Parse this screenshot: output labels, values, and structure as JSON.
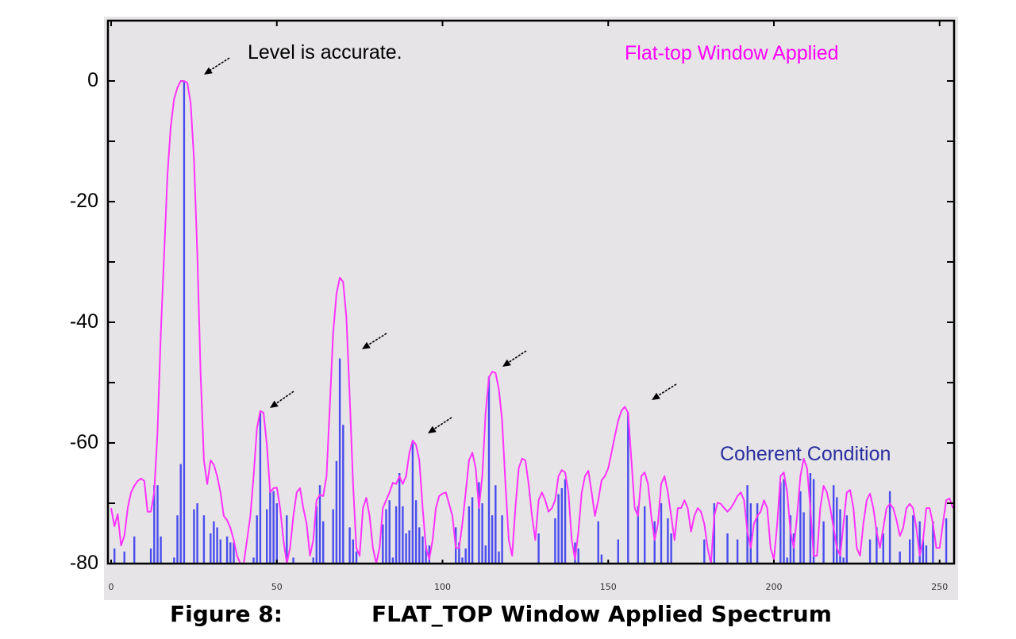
{
  "caption": {
    "figure_label": "Figure 8:",
    "title": "FLAT_TOP Window Applied Spectrum"
  },
  "annotations": {
    "level_note": "Level is accurate.",
    "series_flat_top": "Flat-top Window Applied",
    "series_coherent": "Coherent Condition"
  },
  "colors": {
    "background": "#e6e4e6",
    "flat_top_line": "#ff33ff",
    "coherent_bars": "#4a4cf0",
    "coherent_label": "#2b2fa0",
    "axis": "#000000"
  },
  "chart_data": {
    "type": "bar+line",
    "title": "FLAT_TOP Window Applied Spectrum",
    "xlabel": "",
    "ylabel": "",
    "xlim": [
      -1,
      254.5
    ],
    "ylim": [
      -80,
      10
    ],
    "yticks": [
      0,
      -20,
      -40,
      -60,
      -80
    ],
    "yticks_minor": [
      10,
      -10,
      -30,
      -50,
      -70
    ],
    "xticks": [
      0,
      50,
      100,
      150,
      200,
      250
    ],
    "grid": false,
    "legend": [
      {
        "name": "Flat-top Window Applied",
        "color": "#ff33ff",
        "type": "line"
      },
      {
        "name": "Coherent Condition",
        "color": "#4a4cf0",
        "type": "bar"
      }
    ],
    "arrow_annotations": [
      {
        "bin": 22,
        "db": 0,
        "label": "Level is accurate."
      },
      {
        "bin": 46,
        "db": -54.7
      },
      {
        "bin": 70,
        "db": -46
      },
      {
        "bin": 92,
        "db": -60
      },
      {
        "bin": 115,
        "db": -48
      },
      {
        "bin": 160,
        "db": -54
      }
    ],
    "series": [
      {
        "name": "Flat-top Window Applied",
        "type": "line",
        "x_start": 0,
        "values": [
          -70.8,
          -73.8,
          -71.8,
          -77,
          -75.4,
          -70.8,
          -68.2,
          -67.1,
          -66.3,
          -65.9,
          -66.3,
          -71.4,
          -71.4,
          -68.2,
          -58.3,
          -41.8,
          -28.7,
          -15.5,
          -7.6,
          -3,
          -1.1,
          0,
          0,
          -0.3,
          -3.7,
          -13,
          -28.7,
          -48.4,
          -62.9,
          -66.8,
          -62.9,
          -63.6,
          -65.5,
          -68.2,
          -72.1,
          -72.8,
          -74.1,
          -76.1,
          -78.7,
          -80,
          -80,
          -76.1,
          -72.1,
          -65.5,
          -57.6,
          -54.7,
          -55,
          -60.3,
          -68.2,
          -67.5,
          -67.4,
          -70.8,
          -76.1,
          -80,
          -77.4,
          -72.1,
          -68.2,
          -67.5,
          -70.8,
          -73.4,
          -78.7,
          -76.1,
          -69.5,
          -68.6,
          -68.8,
          -65.5,
          -53.7,
          -41.8,
          -35.3,
          -32.6,
          -33.3,
          -39.2,
          -52.4,
          -66.8,
          -77.4,
          -78.7,
          -70.8,
          -69.1,
          -72.1,
          -77.4,
          -80,
          -77.4,
          -70.8,
          -69.5,
          -68.2,
          -66.6,
          -66.8,
          -65.5,
          -66.8,
          -65.5,
          -61.6,
          -59.6,
          -60.3,
          -62.9,
          -70.8,
          -77.4,
          -79.3,
          -76.1,
          -70.8,
          -68.8,
          -68.4,
          -68.2,
          -70.1,
          -72.1,
          -77.4,
          -77.4,
          -73.4,
          -68.2,
          -62.9,
          -61.6,
          -64.2,
          -70.8,
          -65.5,
          -55,
          -49.1,
          -48.2,
          -48.4,
          -51.1,
          -56.3,
          -66.8,
          -76.1,
          -78.7,
          -70.8,
          -64.2,
          -62.6,
          -62.9,
          -66.8,
          -72.1,
          -76.1,
          -69.5,
          -68.2,
          -69.5,
          -71.4,
          -70.8,
          -69.5,
          -65.5,
          -64.5,
          -64.9,
          -68.2,
          -76.1,
          -79.3,
          -74.7,
          -68.2,
          -65.5,
          -64.6,
          -68.2,
          -72.1,
          -69.5,
          -66.2,
          -65.5,
          -64.2,
          -61.6,
          -58.9,
          -56.3,
          -54.7,
          -54,
          -55,
          -62.9,
          -70.8,
          -72.1,
          -65.5,
          -64.9,
          -66.8,
          -72.1,
          -76.1,
          -73.4,
          -66.8,
          -65.5,
          -68.2,
          -72.1,
          -76.1,
          -70.8,
          -70.8,
          -69.5,
          -70.8,
          -74.7,
          -72.1,
          -70.8,
          -71.4,
          -73.4,
          -77.4,
          -80,
          -72.1,
          -69.9,
          -70.1,
          -70.8,
          -71.4,
          -70.8,
          -69.9,
          -68.8,
          -68.2,
          -69.5,
          -74.7,
          -77.4,
          -73.4,
          -72.1,
          -71.4,
          -69.5,
          -70.8,
          -77.4,
          -79.3,
          -73.4,
          -65.5,
          -64.9,
          -68.2,
          -74.7,
          -77.4,
          -72.1,
          -65.5,
          -62.6,
          -64.2,
          -70.8,
          -78.7,
          -78.7,
          -70.8,
          -67.1,
          -68.2,
          -70.8,
          -74.1,
          -77.4,
          -78.7,
          -73.4,
          -68.2,
          -67.8,
          -70.8,
          -77.4,
          -78.7,
          -73.4,
          -69.5,
          -68.4,
          -70.8,
          -74.7,
          -77.4,
          -74.1,
          -70.8,
          -70.1,
          -70.8,
          -72.8,
          -75.4,
          -74.1,
          -70.8,
          -70.1,
          -70.8,
          -74.1,
          -78.7,
          -76.1,
          -70.8,
          -70.8,
          -73.4,
          -77.4,
          -77.4,
          -73.4,
          -69.5,
          -69.2,
          -70.8
        ]
      },
      {
        "name": "Coherent Condition",
        "type": "bar",
        "x_start": 0,
        "values": [
          -80,
          -77.5,
          -80,
          -80,
          -78,
          -80,
          -80,
          -75.5,
          -80,
          -80,
          -80,
          -80,
          -77.5,
          -67,
          -67,
          -75.5,
          -80,
          -80,
          -80,
          -79,
          -72,
          -63.5,
          0,
          -80,
          -80,
          -71,
          -70,
          -80,
          -72,
          -80,
          -75,
          -73,
          -74,
          -76,
          -80,
          -75.5,
          -76.5,
          -76.5,
          -80,
          -80,
          -80,
          -80,
          -80,
          -79,
          -72,
          -55,
          -80,
          -71,
          -68,
          -68,
          -70,
          -80,
          -80,
          -72,
          -80,
          -79,
          -80,
          -80,
          -80,
          -80,
          -80,
          -79,
          -70.5,
          -67,
          -73,
          -80,
          -80,
          -71,
          -63,
          -46,
          -57,
          -80,
          -74,
          -76,
          -78,
          -80,
          -80,
          -80,
          -80,
          -80,
          -80,
          -80,
          -73.5,
          -71,
          -69.5,
          -79,
          -70.5,
          -65,
          -70.5,
          -75,
          -74.5,
          -60,
          -69.5,
          -74,
          -75.5,
          -77,
          -77,
          -80,
          -80,
          -80,
          -80,
          -80,
          -80,
          -80,
          -74,
          -76.5,
          -79,
          -77.5,
          -70.5,
          -69,
          -80,
          -66.5,
          -70,
          -77,
          -49,
          -72,
          -67,
          -78,
          -72,
          -80,
          -80,
          -80,
          -80,
          -80,
          -80,
          -80,
          -80,
          -80,
          -80,
          -75,
          -80,
          -80,
          -80,
          -80,
          -72.5,
          -68.5,
          -67.5,
          -66,
          -80,
          -80,
          -76.5,
          -77.5,
          -80,
          -80,
          -80,
          -80,
          -80,
          -73,
          -78.5,
          -80,
          -80,
          -80,
          -80,
          -76,
          -80,
          -80,
          -55,
          -80,
          -80,
          -70.5,
          -80,
          -70.5,
          -80,
          -80,
          -73,
          -80,
          -70,
          -80,
          -72.5,
          -75,
          -80,
          -80,
          -80,
          -80,
          -80,
          -80,
          -80,
          -80,
          -80,
          -76,
          -80,
          -80,
          -70,
          -80,
          -80,
          -80,
          -75,
          -80,
          -80,
          -76,
          -80,
          -80,
          -67,
          -70,
          -80,
          -70,
          -80,
          -80,
          -80,
          -80,
          -80,
          -80,
          -66.5,
          -66,
          -79,
          -72,
          -75,
          -80,
          -68,
          -71.5,
          -80,
          -65,
          -66,
          -80,
          -80,
          -73,
          -80,
          -80,
          -67,
          -69,
          -71,
          -79,
          -72,
          -80,
          -80,
          -80,
          -80,
          -80,
          -80,
          -76,
          -80,
          -74,
          -80,
          -75,
          -80,
          -68,
          -80,
          -80,
          -78,
          -80,
          -80,
          -76,
          -72,
          -80,
          -73,
          -76,
          -77,
          -80,
          -73,
          -80,
          -80,
          -80,
          -72.5
        ]
      }
    ]
  }
}
